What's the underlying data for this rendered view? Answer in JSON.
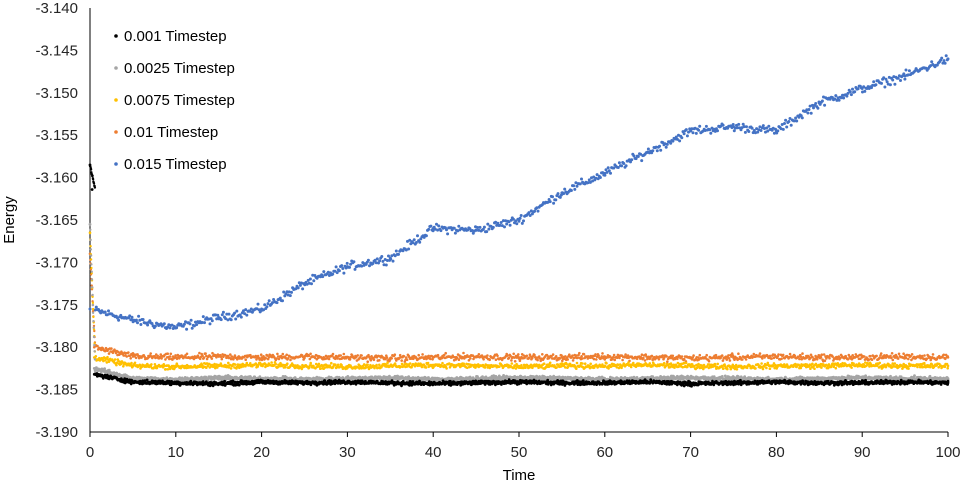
{
  "chart_data": {
    "type": "scatter",
    "title": "",
    "xlabel": "Time",
    "ylabel": "Energy",
    "xlim": [
      0,
      100
    ],
    "ylim": [
      -3.19,
      -3.14
    ],
    "x_ticks": [
      "0",
      "10",
      "20",
      "30",
      "40",
      "50",
      "60",
      "70",
      "80",
      "90",
      "100"
    ],
    "y_ticks": [
      "-3.140",
      "-3.145",
      "-3.150",
      "-3.155",
      "-3.160",
      "-3.165",
      "-3.170",
      "-3.175",
      "-3.180",
      "-3.185",
      "-3.190"
    ],
    "grid": false,
    "legend_position": "top-left",
    "series": [
      {
        "name": "0.001 Timestep",
        "color": "#000000",
        "points": [
          [
            0.0,
            -3.1585
          ],
          [
            0.25,
            -3.1614
          ],
          [
            0.5,
            -3.1832
          ],
          [
            5,
            -3.1841
          ],
          [
            10,
            -3.1842
          ],
          [
            15,
            -3.1843
          ],
          [
            20,
            -3.1841
          ],
          [
            25,
            -3.1842
          ],
          [
            30,
            -3.1841
          ],
          [
            35,
            -3.1842
          ],
          [
            40,
            -3.1843
          ],
          [
            45,
            -3.1842
          ],
          [
            50,
            -3.1841
          ],
          [
            55,
            -3.1842
          ],
          [
            60,
            -3.1842
          ],
          [
            65,
            -3.1841
          ],
          [
            70,
            -3.1843
          ],
          [
            75,
            -3.1842
          ],
          [
            80,
            -3.1841
          ],
          [
            85,
            -3.1842
          ],
          [
            90,
            -3.1842
          ],
          [
            95,
            -3.1841
          ],
          [
            100,
            -3.1842
          ]
        ]
      },
      {
        "name": "0.0025 Timestep",
        "color": "#a5a5a5",
        "points": [
          [
            0.0,
            -3.1655
          ],
          [
            0.5,
            -3.1825
          ],
          [
            5,
            -3.1837
          ],
          [
            10,
            -3.1838
          ],
          [
            15,
            -3.1836
          ],
          [
            20,
            -3.1837
          ],
          [
            25,
            -3.1838
          ],
          [
            30,
            -3.1837
          ],
          [
            35,
            -3.1836
          ],
          [
            40,
            -3.1838
          ],
          [
            45,
            -3.1837
          ],
          [
            50,
            -3.1836
          ],
          [
            55,
            -3.1837
          ],
          [
            60,
            -3.1838
          ],
          [
            65,
            -3.1837
          ],
          [
            70,
            -3.1836
          ],
          [
            75,
            -3.1837
          ],
          [
            80,
            -3.1838
          ],
          [
            85,
            -3.1837
          ],
          [
            90,
            -3.1836
          ],
          [
            95,
            -3.1837
          ],
          [
            100,
            -3.1837
          ]
        ]
      },
      {
        "name": "0.0075 Timestep",
        "color": "#ffc000",
        "points": [
          [
            0.0,
            -3.1665
          ],
          [
            0.5,
            -3.1812
          ],
          [
            5,
            -3.1822
          ],
          [
            10,
            -3.1823
          ],
          [
            15,
            -3.1822
          ],
          [
            20,
            -3.1821
          ],
          [
            25,
            -3.1822
          ],
          [
            30,
            -3.1823
          ],
          [
            35,
            -3.1822
          ],
          [
            40,
            -3.1821
          ],
          [
            45,
            -3.1822
          ],
          [
            50,
            -3.1823
          ],
          [
            55,
            -3.1822
          ],
          [
            60,
            -3.1822
          ],
          [
            65,
            -3.1821
          ],
          [
            70,
            -3.1822
          ],
          [
            75,
            -3.1823
          ],
          [
            80,
            -3.1822
          ],
          [
            85,
            -3.1822
          ],
          [
            90,
            -3.1821
          ],
          [
            95,
            -3.1822
          ],
          [
            100,
            -3.1822
          ]
        ]
      },
      {
        "name": "0.01 Timestep",
        "color": "#ed7d31",
        "points": [
          [
            0.0,
            -3.169
          ],
          [
            0.5,
            -3.18
          ],
          [
            5,
            -3.1811
          ],
          [
            10,
            -3.1812
          ],
          [
            15,
            -3.1811
          ],
          [
            20,
            -3.1812
          ],
          [
            25,
            -3.1811
          ],
          [
            30,
            -3.1812
          ],
          [
            35,
            -3.1813
          ],
          [
            40,
            -3.1812
          ],
          [
            45,
            -3.1811
          ],
          [
            50,
            -3.1812
          ],
          [
            55,
            -3.1812
          ],
          [
            60,
            -3.1811
          ],
          [
            65,
            -3.1812
          ],
          [
            70,
            -3.1813
          ],
          [
            75,
            -3.1812
          ],
          [
            80,
            -3.1811
          ],
          [
            85,
            -3.1812
          ],
          [
            90,
            -3.1812
          ],
          [
            95,
            -3.1811
          ],
          [
            100,
            -3.1812
          ]
        ]
      },
      {
        "name": "0.015 Timestep",
        "color": "#4472c4",
        "points": [
          [
            0,
            -3.1755
          ],
          [
            5,
            -3.1768
          ],
          [
            10,
            -3.1777
          ],
          [
            15,
            -3.1765
          ],
          [
            20,
            -3.1755
          ],
          [
            25,
            -3.1725
          ],
          [
            30,
            -3.1705
          ],
          [
            35,
            -3.1695
          ],
          [
            40,
            -3.166
          ],
          [
            45,
            -3.1662
          ],
          [
            50,
            -3.165
          ],
          [
            55,
            -3.1618
          ],
          [
            60,
            -3.1595
          ],
          [
            65,
            -3.157
          ],
          [
            70,
            -3.1545
          ],
          [
            75,
            -3.154
          ],
          [
            80,
            -3.1545
          ],
          [
            85,
            -3.1512
          ],
          [
            90,
            -3.1495
          ],
          [
            95,
            -3.148
          ],
          [
            100,
            -3.146
          ]
        ]
      }
    ]
  }
}
